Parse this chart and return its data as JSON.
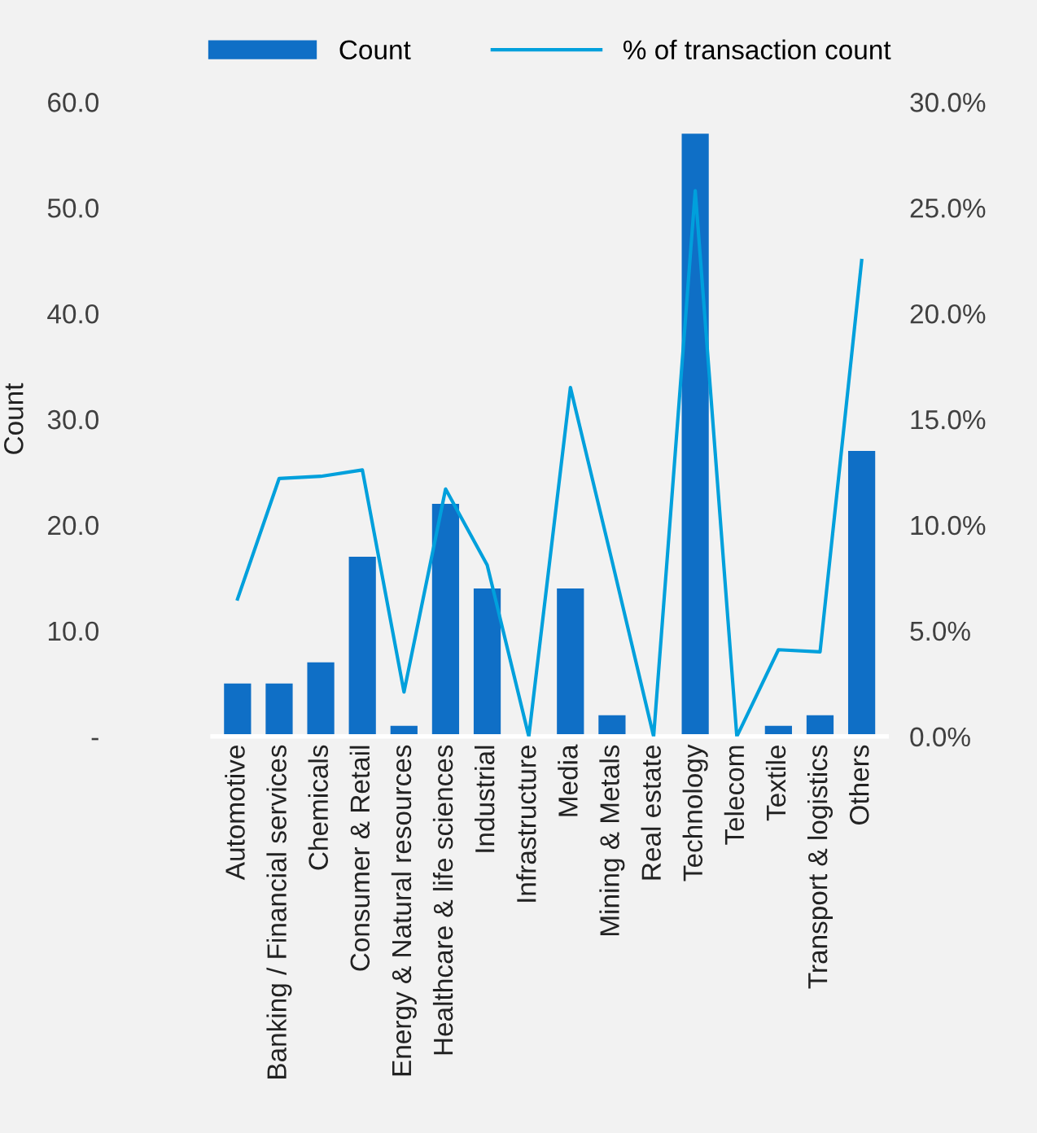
{
  "chart_data": {
    "type": "bar",
    "ylabel": "Count",
    "legend": "top",
    "grid": false,
    "categories": [
      "Automotive",
      "Banking / Financial services",
      "Chemicals",
      "Consumer & Retail",
      "Energy & Natural resources",
      "Healthcare & life sciences",
      "Industrial",
      "Infrastructure",
      "Media",
      "Mining & Metals",
      "Real estate",
      "Technology",
      "Telecom",
      "Textile",
      "Transport & logistics",
      "Others"
    ],
    "series": [
      {
        "name": "Count",
        "color": "#0f6fc6",
        "values": [
          5,
          5,
          7,
          17,
          1,
          22,
          14,
          0,
          14,
          2,
          0,
          57,
          0,
          1,
          2,
          27
        ]
      },
      {
        "name": "% of transaction count",
        "type": "line",
        "axis": "y2",
        "color": "#00a0dc",
        "values": [
          6.5,
          12.2,
          12.3,
          12.6,
          2.1,
          11.7,
          8.1,
          0,
          16.5,
          8.3,
          0,
          25.8,
          0,
          4.1,
          4.0,
          22.5
        ]
      }
    ],
    "ylim": [
      0,
      60
    ],
    "yticks": [
      {
        "value": 0,
        "label": "-"
      },
      {
        "value": 10,
        "label": "10.0"
      },
      {
        "value": 20,
        "label": "20.0"
      },
      {
        "value": 30,
        "label": "30.0"
      },
      {
        "value": 40,
        "label": "40.0"
      },
      {
        "value": 50,
        "label": "50.0"
      },
      {
        "value": 60,
        "label": "60.0"
      }
    ],
    "y2lim": [
      0,
      30
    ],
    "y2ticks": [
      {
        "value": 0,
        "label": "0.0%"
      },
      {
        "value": 5,
        "label": "5.0%"
      },
      {
        "value": 10,
        "label": "10.0%"
      },
      {
        "value": 15,
        "label": "15.0%"
      },
      {
        "value": 20,
        "label": "20.0%"
      },
      {
        "value": 25,
        "label": "25.0%"
      },
      {
        "value": 30,
        "label": "30.0%"
      }
    ]
  }
}
